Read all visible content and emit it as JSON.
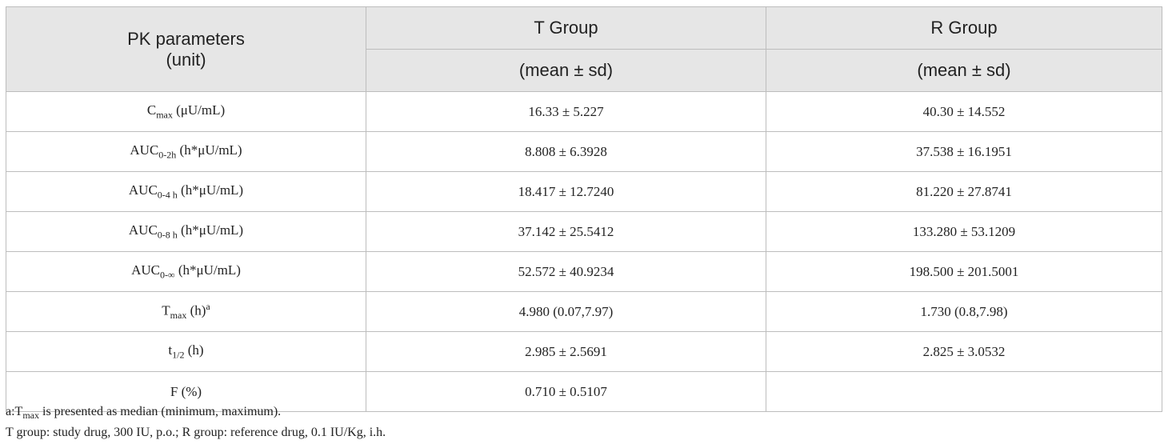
{
  "header": {
    "param": [
      "PK parameters",
      "(unit)"
    ],
    "t_group": "T Group",
    "t_note": "(mean ± sd)",
    "r_group": "R Group",
    "r_note": "(mean ± sd)"
  },
  "rows": [
    {
      "name": "C",
      "sub": "max",
      "unit": " (μU/mL)",
      "t": "16.33 ± 5.227",
      "r": "40.30 ± 14.552"
    },
    {
      "name": "AUC",
      "sub": "0-2h",
      "unit": " (h*μU/mL)",
      "t": "8.808 ± 6.3928",
      "r": "37.538 ± 16.1951"
    },
    {
      "name": "AUC",
      "sub": "0-4 h",
      "unit": " (h*μU/mL)",
      "t": "18.417 ± 12.7240",
      "r": "81.220 ± 27.8741"
    },
    {
      "name": "AUC",
      "sub": "0-8 h",
      "unit": " (h*μU/mL)",
      "t": "37.142 ± 25.5412",
      "r": "133.280 ± 53.1209"
    },
    {
      "name": "AUC",
      "sub": "0-∞",
      "unit": " (h*μU/mL)",
      "t": "52.572 ± 40.9234",
      "r": "198.500 ± 201.5001"
    },
    {
      "name": "T",
      "sub": "max",
      "unit": " (h)",
      "sup": "a",
      "t": "4.980 (0.07,7.97)",
      "r": "1.730 (0.8,7.98)"
    },
    {
      "name": "t",
      "sub": "1/2",
      "unit": " (h)",
      "t": "2.985 ± 2.5691",
      "r": "2.825 ± 3.0532"
    },
    {
      "name": "F (%)",
      "t": "0.710 ± 0.5107"
    }
  ],
  "footnotes": [
    {
      "prefix": "a:T",
      "sub": "max",
      "text": " is presented as median (minimum, maximum)."
    },
    {
      "text": "T group: study drug, 300 IU, p.o.; R group: reference drug, 0.1 IU/Kg, i.h."
    }
  ]
}
